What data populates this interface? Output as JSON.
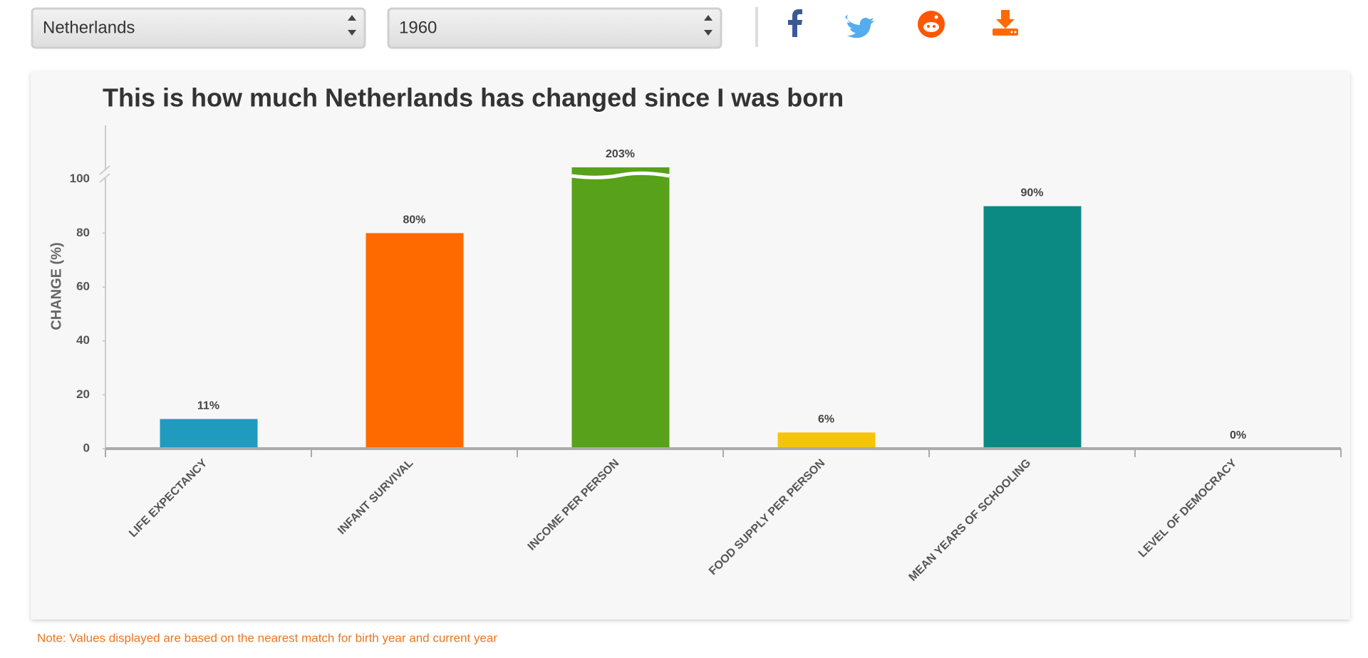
{
  "controls": {
    "country": "Netherlands",
    "year": "1960"
  },
  "chart_data": {
    "type": "bar",
    "title": "This is how much Netherlands has changed since I was born",
    "y_label": "CHANGE (%)",
    "categories": [
      "LIFE EXPECTANCY",
      "INFANT SURVIVAL",
      "INCOME PER PERSON",
      "FOOD SUPPLY PER PERSON",
      "MEAN YEARS OF SCHOOLING",
      "LEVEL OF DEMOCRACY"
    ],
    "values": [
      11,
      80,
      203,
      6,
      90,
      0
    ],
    "value_labels": [
      "11%",
      "80%",
      "203%",
      "6%",
      "90%",
      "0%"
    ],
    "colors": [
      "#1f9bbf",
      "#ff6a00",
      "#58a11a",
      "#f5c50e",
      "#0b8a84",
      "#7b52a1"
    ],
    "ylim": [
      0,
      120
    ],
    "yticks": [
      0,
      20,
      40,
      60,
      80,
      100
    ],
    "axis_break": true
  },
  "footer": {
    "note": "Note: Values displayed are based on the nearest match for birth year and current year"
  }
}
